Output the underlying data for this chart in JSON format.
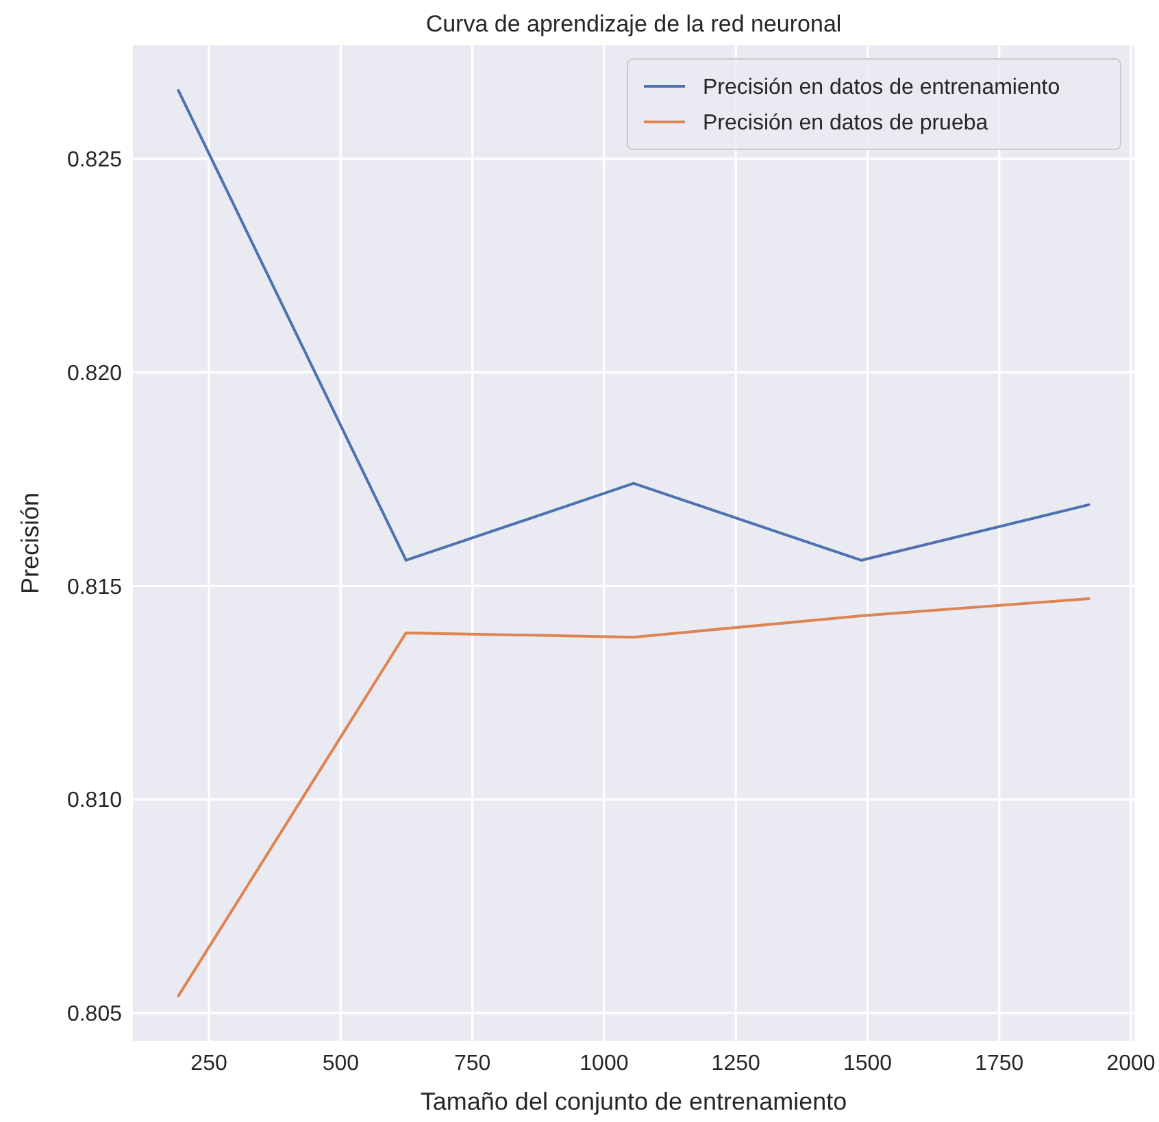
{
  "chart_data": {
    "type": "line",
    "title": "Curva de aprendizaje de la red neuronal",
    "xlabel": "Tamaño del conjunto de entrenamiento",
    "ylabel": "Precisión",
    "x": [
      192,
      624,
      1056,
      1488,
      1920
    ],
    "series": [
      {
        "name": "Precisión en datos de entrenamiento",
        "color": "#4c72b0",
        "values": [
          0.8266,
          0.8156,
          0.8174,
          0.8156,
          0.8169
        ]
      },
      {
        "name": "Precisión en datos de prueba",
        "color": "#dd8452",
        "values": [
          0.8054,
          0.8139,
          0.8138,
          0.8143,
          0.8147
        ]
      }
    ],
    "xlim": [
      105.6,
      2006.4
    ],
    "xticks": [
      250,
      500,
      750,
      1000,
      1250,
      1500,
      1750,
      2000
    ],
    "ylim": [
      0.80434,
      0.82766
    ],
    "yticks": [
      {
        "value": 0.805,
        "label": "0.805"
      },
      {
        "value": 0.81,
        "label": "0.810"
      },
      {
        "value": 0.815,
        "label": "0.815"
      },
      {
        "value": 0.82,
        "label": "0.820"
      },
      {
        "value": 0.825,
        "label": "0.825"
      }
    ],
    "grid": true,
    "legend": "top right",
    "marker": "none",
    "line_style": "solid"
  }
}
